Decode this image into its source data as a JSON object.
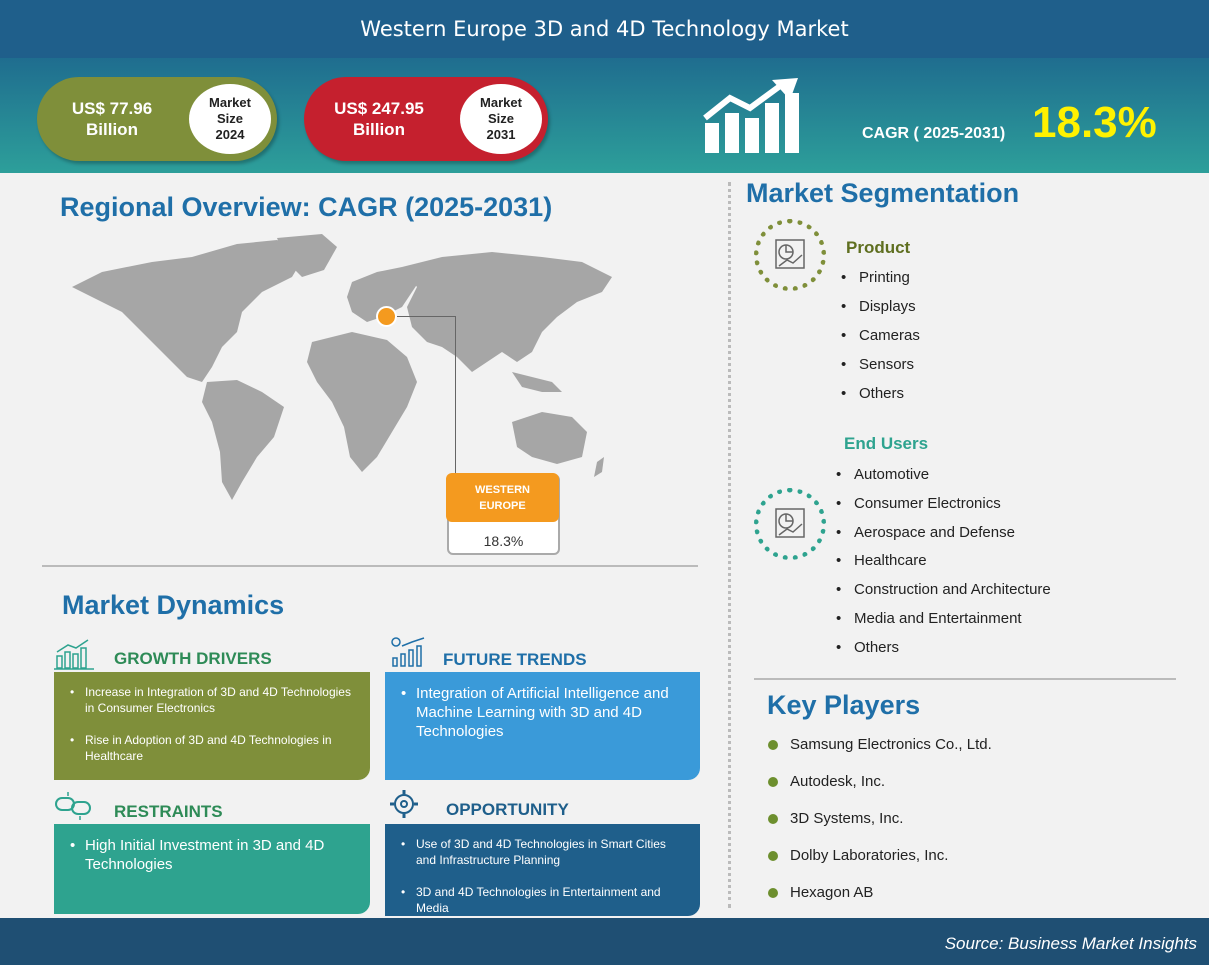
{
  "title": "Western Europe 3D and 4D Technology Market",
  "market_size": {
    "y2024": {
      "value": "US$ 77.96",
      "unit": "Billion",
      "label_l1": "Market",
      "label_l2": "Size",
      "year": "2024"
    },
    "y2031": {
      "value": "US$ 247.95",
      "unit": "Billion",
      "label_l1": "Market",
      "label_l2": "Size",
      "year": "2031"
    }
  },
  "cagr": {
    "label": "CAGR ( 2025-2031)",
    "value": "18.3%"
  },
  "regional": {
    "title": "Regional Overview: CAGR (2025-2031)",
    "region_l1": "WESTERN",
    "region_l2": "EUROPE",
    "region_value": "18.3%"
  },
  "dynamics": {
    "title": "Market Dynamics",
    "growth_drivers": {
      "heading": "GROWTH DRIVERS",
      "items": [
        "Increase in Integration of 3D and 4D Technologies in Consumer Electronics",
        "Rise in Adoption of 3D and 4D Technologies in Healthcare"
      ]
    },
    "future_trends": {
      "heading": "FUTURE TRENDS",
      "items": [
        "Integration of Artificial Intelligence and Machine Learning with 3D and 4D Technologies"
      ]
    },
    "restraints": {
      "heading": "RESTRAINTS",
      "items": [
        "High Initial Investment in 3D and 4D Technologies"
      ]
    },
    "opportunity": {
      "heading": "OPPORTUNITY",
      "items": [
        "Use of 3D and 4D Technologies in Smart Cities and Infrastructure Planning",
        "3D and 4D Technologies in Entertainment and Media"
      ]
    }
  },
  "segmentation": {
    "title": "Market Segmentation",
    "product": {
      "heading": "Product",
      "items": [
        "Printing",
        "Displays",
        "Cameras",
        "Sensors",
        "Others"
      ]
    },
    "end_users": {
      "heading": "End Users",
      "items": [
        "Automotive",
        "Consumer Electronics",
        "Aerospace and Defense",
        "Healthcare",
        "Construction and Architecture",
        "Media and Entertainment",
        "Others"
      ]
    }
  },
  "key_players": {
    "title": "Key Players",
    "items": [
      "Samsung Electronics Co., Ltd.",
      "Autodesk, Inc.",
      "3D Systems, Inc.",
      "Dolby Laboratories, Inc.",
      "Hexagon AB"
    ]
  },
  "footer": {
    "source": "Source: Business Market Insights"
  },
  "colors": {
    "header": "#1f5f8b",
    "accent_blue": "#1f6fa8",
    "green": "#7f8f3a",
    "red": "#c5202e",
    "orange": "#f49a1f",
    "teal": "#2ea38f",
    "sky": "#3a9ad9",
    "navy": "#1f5f8b",
    "cagr_yellow": "#fff200"
  },
  "icons": [
    "growth-chart-icon",
    "bar-chart-icon",
    "trend-icon",
    "chain-link-icon",
    "gear-icon",
    "pie-chart-icon"
  ]
}
